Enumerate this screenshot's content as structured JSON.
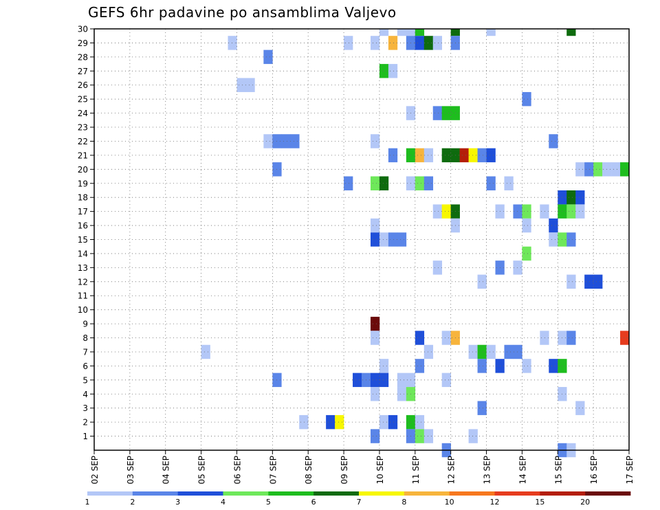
{
  "title": "GEFS 6hr padavine po ansamblima Valjevo",
  "chart_data": {
    "type": "heatmap",
    "title": "GEFS 6hr padavine po ansamblima Valjevo",
    "xlabel": "",
    "ylabel": "",
    "y_ticks": [
      1,
      2,
      3,
      4,
      5,
      6,
      7,
      8,
      9,
      10,
      11,
      12,
      13,
      14,
      15,
      16,
      17,
      18,
      19,
      20,
      21,
      22,
      23,
      24,
      25,
      26,
      27,
      28,
      29,
      30
    ],
    "x_ticks": [
      "02 SEP",
      "03 SEP",
      "04 SEP",
      "05 SEP",
      "06 SEP",
      "07 SEP",
      "08 SEP",
      "09 SEP",
      "10 SEP",
      "11 SEP",
      "12 SEP",
      "13 SEP",
      "14 SEP",
      "15 SEP",
      "16 SEP",
      "17 SEP"
    ],
    "x_start": "02 SEP",
    "steps_per_day": 4,
    "grid": true,
    "colorbar": {
      "labels": [
        "1",
        "2",
        "3",
        "4",
        "5",
        "6",
        "7",
        "8",
        "10",
        "12",
        "15",
        "20"
      ],
      "colors": [
        "#b3c7f7",
        "#5a85e8",
        "#1f4fd9",
        "#6ee85a",
        "#1ebd1e",
        "#0e6b0e",
        "#f7f700",
        "#f7b43c",
        "#f7781e",
        "#e63c1e",
        "#b41e0a",
        "#6b0a0a"
      ]
    },
    "cells": [
      {
        "m": 30,
        "s": 32,
        "v": 1
      },
      {
        "m": 30,
        "s": 34,
        "v": 1
      },
      {
        "m": 30,
        "s": 35,
        "v": 1
      },
      {
        "m": 30,
        "s": 36,
        "v": 5
      },
      {
        "m": 30,
        "s": 40,
        "v": 6
      },
      {
        "m": 30,
        "s": 44,
        "v": 1
      },
      {
        "m": 30,
        "s": 53,
        "v": 6
      },
      {
        "m": 29,
        "s": 15,
        "v": 1
      },
      {
        "m": 29,
        "s": 28,
        "v": 1
      },
      {
        "m": 29,
        "s": 31,
        "v": 1
      },
      {
        "m": 29,
        "s": 33,
        "v": 8
      },
      {
        "m": 29,
        "s": 35,
        "v": 2
      },
      {
        "m": 29,
        "s": 36,
        "v": 3
      },
      {
        "m": 29,
        "s": 37,
        "v": 6
      },
      {
        "m": 29,
        "s": 38,
        "v": 1
      },
      {
        "m": 29,
        "s": 40,
        "v": 2
      },
      {
        "m": 28,
        "s": 19,
        "v": 2
      },
      {
        "m": 27,
        "s": 32,
        "v": 5
      },
      {
        "m": 27,
        "s": 33,
        "v": 1
      },
      {
        "m": 26,
        "s": 16,
        "v": 1
      },
      {
        "m": 26,
        "s": 17,
        "v": 1
      },
      {
        "m": 25,
        "s": 48,
        "v": 2
      },
      {
        "m": 24,
        "s": 35,
        "v": 1
      },
      {
        "m": 24,
        "s": 38,
        "v": 2
      },
      {
        "m": 24,
        "s": 39,
        "v": 5
      },
      {
        "m": 24,
        "s": 40,
        "v": 5
      },
      {
        "m": 22,
        "s": 19,
        "v": 1
      },
      {
        "m": 22,
        "s": 20,
        "v": 2
      },
      {
        "m": 22,
        "s": 21,
        "v": 2
      },
      {
        "m": 22,
        "s": 22,
        "v": 2
      },
      {
        "m": 22,
        "s": 31,
        "v": 1
      },
      {
        "m": 22,
        "s": 51,
        "v": 2
      },
      {
        "m": 21,
        "s": 33,
        "v": 2
      },
      {
        "m": 21,
        "s": 35,
        "v": 5
      },
      {
        "m": 21,
        "s": 36,
        "v": 8
      },
      {
        "m": 21,
        "s": 37,
        "v": 1
      },
      {
        "m": 21,
        "s": 39,
        "v": 6
      },
      {
        "m": 21,
        "s": 40,
        "v": 6
      },
      {
        "m": 21,
        "s": 41,
        "v": 15
      },
      {
        "m": 21,
        "s": 42,
        "v": 7
      },
      {
        "m": 21,
        "s": 43,
        "v": 2
      },
      {
        "m": 21,
        "s": 44,
        "v": 3
      },
      {
        "m": 20,
        "s": 20,
        "v": 2
      },
      {
        "m": 20,
        "s": 54,
        "v": 1
      },
      {
        "m": 20,
        "s": 55,
        "v": 2
      },
      {
        "m": 20,
        "s": 56,
        "v": 4
      },
      {
        "m": 20,
        "s": 57,
        "v": 1
      },
      {
        "m": 20,
        "s": 58,
        "v": 1
      },
      {
        "m": 20,
        "s": 59,
        "v": 5
      },
      {
        "m": 19,
        "s": 28,
        "v": 2
      },
      {
        "m": 19,
        "s": 31,
        "v": 4
      },
      {
        "m": 19,
        "s": 32,
        "v": 6
      },
      {
        "m": 19,
        "s": 35,
        "v": 1
      },
      {
        "m": 19,
        "s": 36,
        "v": 4
      },
      {
        "m": 19,
        "s": 37,
        "v": 2
      },
      {
        "m": 19,
        "s": 44,
        "v": 2
      },
      {
        "m": 19,
        "s": 46,
        "v": 1
      },
      {
        "m": 18,
        "s": 52,
        "v": 3
      },
      {
        "m": 18,
        "s": 53,
        "v": 6
      },
      {
        "m": 18,
        "s": 54,
        "v": 3
      },
      {
        "m": 17,
        "s": 38,
        "v": 1
      },
      {
        "m": 17,
        "s": 39,
        "v": 7
      },
      {
        "m": 17,
        "s": 40,
        "v": 6
      },
      {
        "m": 17,
        "s": 45,
        "v": 1
      },
      {
        "m": 17,
        "s": 47,
        "v": 2
      },
      {
        "m": 17,
        "s": 48,
        "v": 4
      },
      {
        "m": 17,
        "s": 50,
        "v": 1
      },
      {
        "m": 17,
        "s": 52,
        "v": 5
      },
      {
        "m": 17,
        "s": 53,
        "v": 4
      },
      {
        "m": 17,
        "s": 54,
        "v": 1
      },
      {
        "m": 16,
        "s": 31,
        "v": 1
      },
      {
        "m": 16,
        "s": 40,
        "v": 1
      },
      {
        "m": 16,
        "s": 48,
        "v": 1
      },
      {
        "m": 16,
        "s": 51,
        "v": 3
      },
      {
        "m": 15,
        "s": 31,
        "v": 3
      },
      {
        "m": 15,
        "s": 32,
        "v": 1
      },
      {
        "m": 15,
        "s": 33,
        "v": 2
      },
      {
        "m": 15,
        "s": 34,
        "v": 2
      },
      {
        "m": 15,
        "s": 51,
        "v": 1
      },
      {
        "m": 15,
        "s": 52,
        "v": 4
      },
      {
        "m": 15,
        "s": 53,
        "v": 2
      },
      {
        "m": 14,
        "s": 48,
        "v": 4
      },
      {
        "m": 13,
        "s": 38,
        "v": 1
      },
      {
        "m": 13,
        "s": 45,
        "v": 2
      },
      {
        "m": 13,
        "s": 47,
        "v": 1
      },
      {
        "m": 12,
        "s": 43,
        "v": 1
      },
      {
        "m": 12,
        "s": 53,
        "v": 1
      },
      {
        "m": 12,
        "s": 55,
        "v": 3
      },
      {
        "m": 12,
        "s": 56,
        "v": 3
      },
      {
        "m": 9,
        "s": 31,
        "v": 20
      },
      {
        "m": 8,
        "s": 31,
        "v": 1
      },
      {
        "m": 8,
        "s": 36,
        "v": 3
      },
      {
        "m": 8,
        "s": 39,
        "v": 1
      },
      {
        "m": 8,
        "s": 40,
        "v": 8
      },
      {
        "m": 8,
        "s": 50,
        "v": 1
      },
      {
        "m": 8,
        "s": 52,
        "v": 1
      },
      {
        "m": 8,
        "s": 53,
        "v": 2
      },
      {
        "m": 8,
        "s": 59,
        "v": 12
      },
      {
        "m": 7,
        "s": 12,
        "v": 1
      },
      {
        "m": 7,
        "s": 37,
        "v": 1
      },
      {
        "m": 7,
        "s": 42,
        "v": 1
      },
      {
        "m": 7,
        "s": 43,
        "v": 5
      },
      {
        "m": 7,
        "s": 44,
        "v": 1
      },
      {
        "m": 7,
        "s": 46,
        "v": 2
      },
      {
        "m": 7,
        "s": 47,
        "v": 2
      },
      {
        "m": 6,
        "s": 32,
        "v": 1
      },
      {
        "m": 6,
        "s": 36,
        "v": 2
      },
      {
        "m": 6,
        "s": 43,
        "v": 2
      },
      {
        "m": 6,
        "s": 45,
        "v": 3
      },
      {
        "m": 6,
        "s": 48,
        "v": 1
      },
      {
        "m": 6,
        "s": 51,
        "v": 3
      },
      {
        "m": 6,
        "s": 52,
        "v": 5
      },
      {
        "m": 5,
        "s": 20,
        "v": 2
      },
      {
        "m": 5,
        "s": 29,
        "v": 3
      },
      {
        "m": 5,
        "s": 30,
        "v": 2
      },
      {
        "m": 5,
        "s": 31,
        "v": 3
      },
      {
        "m": 5,
        "s": 32,
        "v": 3
      },
      {
        "m": 5,
        "s": 34,
        "v": 1
      },
      {
        "m": 5,
        "s": 35,
        "v": 1
      },
      {
        "m": 5,
        "s": 39,
        "v": 1
      },
      {
        "m": 4,
        "s": 31,
        "v": 1
      },
      {
        "m": 4,
        "s": 34,
        "v": 1
      },
      {
        "m": 4,
        "s": 35,
        "v": 4
      },
      {
        "m": 4,
        "s": 52,
        "v": 1
      },
      {
        "m": 3,
        "s": 43,
        "v": 2
      },
      {
        "m": 3,
        "s": 54,
        "v": 1
      },
      {
        "m": 2,
        "s": 23,
        "v": 1
      },
      {
        "m": 2,
        "s": 26,
        "v": 3
      },
      {
        "m": 2,
        "s": 27,
        "v": 7
      },
      {
        "m": 2,
        "s": 32,
        "v": 1
      },
      {
        "m": 2,
        "s": 33,
        "v": 3
      },
      {
        "m": 2,
        "s": 35,
        "v": 5
      },
      {
        "m": 2,
        "s": 36,
        "v": 1
      },
      {
        "m": 1,
        "s": 31,
        "v": 2
      },
      {
        "m": 1,
        "s": 35,
        "v": 2
      },
      {
        "m": 1,
        "s": 36,
        "v": 4
      },
      {
        "m": 1,
        "s": 37,
        "v": 1
      },
      {
        "m": 1,
        "s": 42,
        "v": 1
      },
      {
        "m": 0,
        "s": 39,
        "v": 2
      },
      {
        "m": 0,
        "s": 52,
        "v": 2
      },
      {
        "m": 0,
        "s": 53,
        "v": 1
      }
    ]
  }
}
